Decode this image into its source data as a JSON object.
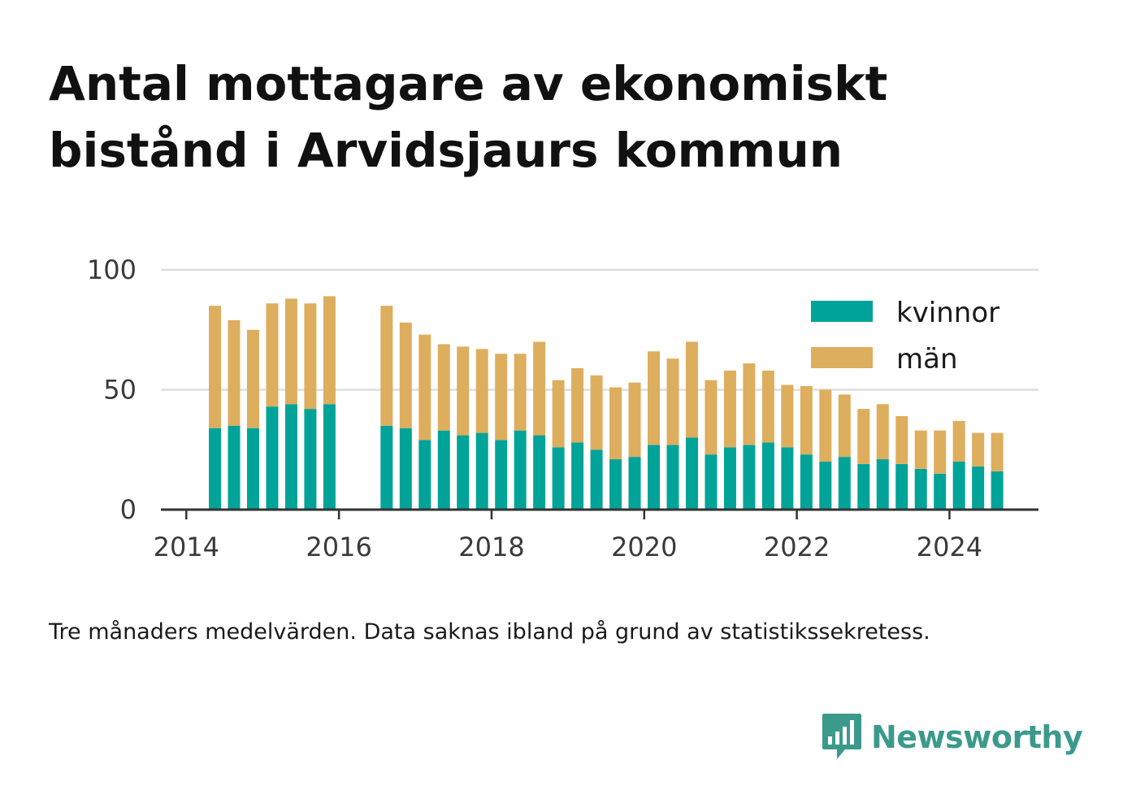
{
  "title": "Antal mottagare av ekonomiskt bistånd i Arvidsjaurs kommun",
  "caption": "Tre månaders medelvärden. Data saknas ibland på grund av statistikssekretess.",
  "logo": {
    "text": "Newsworthy",
    "icon": "newsworthy-bar-chat-icon",
    "color": "#3b9a8c"
  },
  "chart_data": {
    "type": "bar",
    "stacked": true,
    "x_axis": {
      "type": "date",
      "tick_labels": [
        "2014",
        "2016",
        "2018",
        "2020",
        "2022",
        "2024"
      ],
      "range": [
        "2013-09-01",
        "2025-03-01"
      ]
    },
    "y_axis": {
      "ticks": [
        0,
        50,
        100
      ],
      "ylim": [
        0,
        100
      ]
    },
    "grid": true,
    "legend_position": "top-right",
    "x": [
      "2014-05",
      "2014-08",
      "2014-11",
      "2015-02",
      "2015-05",
      "2015-08",
      "2015-11",
      "2016-08",
      "2016-11",
      "2017-02",
      "2017-05",
      "2017-08",
      "2017-11",
      "2018-02",
      "2018-05",
      "2018-08",
      "2018-11",
      "2019-02",
      "2019-05",
      "2019-08",
      "2019-11",
      "2020-02",
      "2020-05",
      "2020-08",
      "2020-11",
      "2021-02",
      "2021-05",
      "2021-08",
      "2021-11",
      "2022-02",
      "2022-05",
      "2022-08",
      "2022-11",
      "2023-02",
      "2023-05",
      "2023-08",
      "2023-11",
      "2024-02",
      "2024-05",
      "2024-08"
    ],
    "series": [
      {
        "name": "kvinnor",
        "color": "#00a398",
        "values": [
          34,
          35,
          34,
          43,
          44,
          42,
          44,
          35,
          34,
          29,
          33,
          31,
          32,
          29,
          33,
          31,
          26,
          28,
          25,
          21,
          22,
          27,
          27,
          30,
          23,
          26,
          27,
          28,
          26,
          23,
          20,
          22,
          19,
          21,
          19,
          17,
          15,
          20,
          18,
          16
        ]
      },
      {
        "name": "män",
        "color": "#ddae5d",
        "values": [
          51,
          44,
          41,
          43,
          44,
          44,
          45,
          50,
          44,
          44,
          36,
          37,
          35,
          36,
          32,
          39,
          28,
          31,
          31,
          30,
          31,
          39,
          36,
          40,
          31,
          32,
          34,
          30,
          26,
          29,
          30,
          26,
          23,
          23,
          20,
          16,
          18,
          17,
          14,
          16
        ]
      }
    ]
  }
}
